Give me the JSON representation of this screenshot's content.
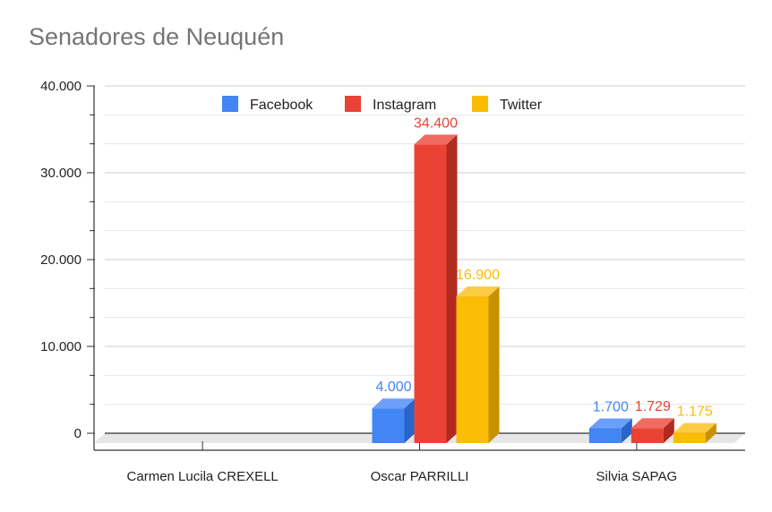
{
  "chart_data": {
    "type": "bar",
    "title": "Senadores de Neuquén",
    "xlabel": "",
    "ylabel": "",
    "ylim": [
      0,
      40000
    ],
    "y_ticks": [
      0,
      10000,
      20000,
      30000,
      40000
    ],
    "y_tick_labels": [
      "0",
      "10.000",
      "20.000",
      "30.000",
      "40.000"
    ],
    "categories": [
      "Carmen Lucila CREXELL",
      "Oscar PARRILLI",
      "Silvia SAPAG"
    ],
    "series": [
      {
        "name": "Facebook",
        "color": "#4285f4",
        "side_color": "#2b64c8",
        "top_color": "#6c9ff7",
        "values": [
          null,
          4000,
          1700
        ],
        "labels": [
          "",
          "4.000",
          "1.700"
        ]
      },
      {
        "name": "Instagram",
        "color": "#ea4335",
        "side_color": "#b02a20",
        "top_color": "#f06a5f",
        "values": [
          null,
          34400,
          1729
        ],
        "labels": [
          "",
          "34.400",
          "1.729"
        ]
      },
      {
        "name": "Twitter",
        "color": "#fbbc04",
        "side_color": "#c69200",
        "top_color": "#fccc45",
        "values": [
          null,
          16900,
          1175
        ],
        "labels": [
          "",
          "16.900",
          "1.175"
        ]
      }
    ],
    "legend_position": "top",
    "grid": true,
    "style": "3d"
  }
}
